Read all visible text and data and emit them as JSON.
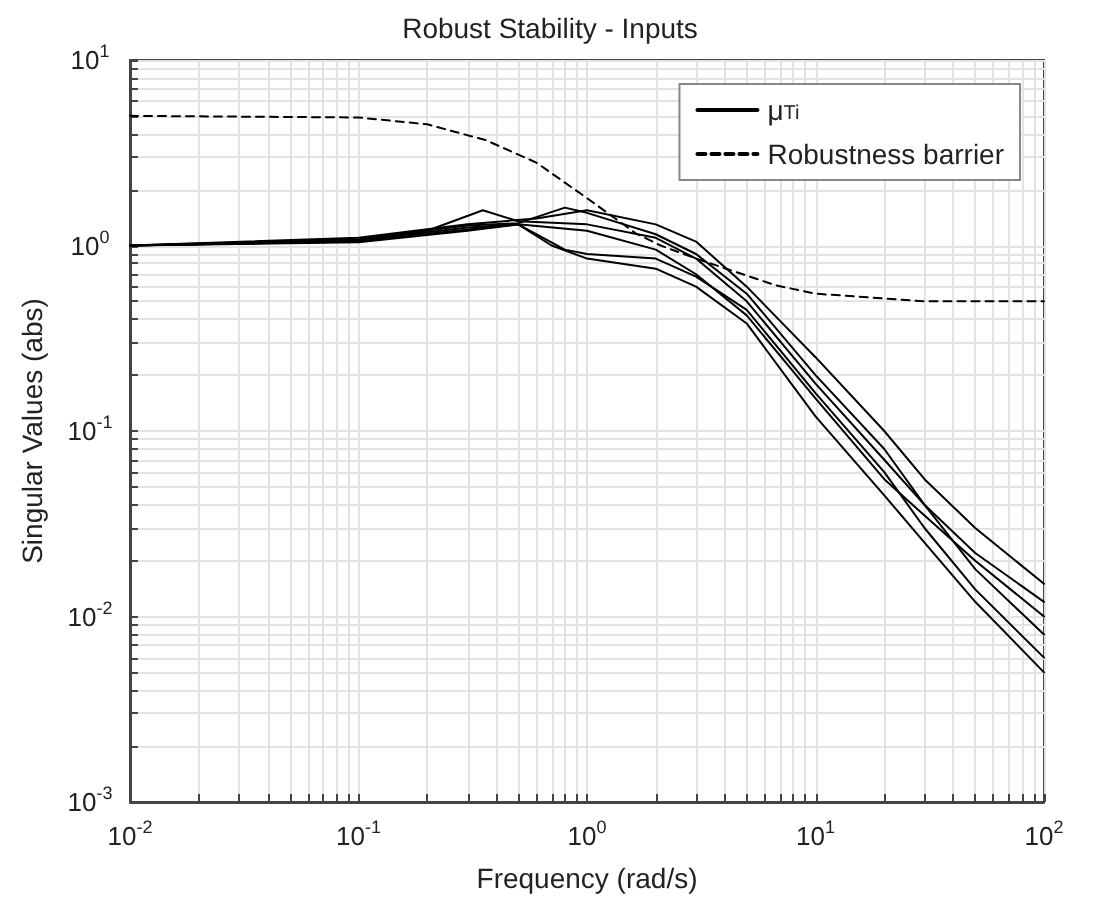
{
  "chart_data": {
    "type": "line",
    "title": "Robust Stability - Inputs",
    "xlabel": "Frequency (rad/s)",
    "ylabel": "Singular Values (abs)",
    "log": "xy",
    "grid": true,
    "legend": "top right",
    "marker": "none",
    "xlim": [
      0.01,
      100
    ],
    "ylim": [
      0.001,
      10
    ],
    "xticks": [
      {
        "value": 0.01,
        "label": "10$^{-2}$"
      },
      {
        "value": 0.02,
        "label": null
      },
      {
        "value": 0.03,
        "label": null
      },
      {
        "value": 0.04,
        "label": null
      },
      {
        "value": 0.05,
        "label": null
      },
      {
        "value": 0.06,
        "label": null
      },
      {
        "value": 0.07,
        "label": null
      },
      {
        "value": 0.08,
        "label": null
      },
      {
        "value": 0.09,
        "label": null
      },
      {
        "value": 0.1,
        "label": "10$^{-1}$"
      },
      {
        "value": 0.2,
        "label": null
      },
      {
        "value": 0.3,
        "label": null
      },
      {
        "value": 0.4,
        "label": null
      },
      {
        "value": 0.5,
        "label": null
      },
      {
        "value": 0.6,
        "label": null
      },
      {
        "value": 0.7,
        "label": null
      },
      {
        "value": 0.8,
        "label": null
      },
      {
        "value": 0.9,
        "label": null
      },
      {
        "value": 1,
        "label": "10$^{0}$"
      },
      {
        "value": 2,
        "label": null
      },
      {
        "value": 3,
        "label": null
      },
      {
        "value": 4,
        "label": null
      },
      {
        "value": 5,
        "label": null
      },
      {
        "value": 6,
        "label": null
      },
      {
        "value": 7,
        "label": null
      },
      {
        "value": 8,
        "label": null
      },
      {
        "value": 9,
        "label": null
      },
      {
        "value": 10,
        "label": "10$^{1}$"
      },
      {
        "value": 20,
        "label": null
      },
      {
        "value": 30,
        "label": null
      },
      {
        "value": 40,
        "label": null
      },
      {
        "value": 50,
        "label": null
      },
      {
        "value": 60,
        "label": null
      },
      {
        "value": 70,
        "label": null
      },
      {
        "value": 80,
        "label": null
      },
      {
        "value": 90,
        "label": null
      },
      {
        "value": 100,
        "label": "10$^{2}$"
      }
    ],
    "yticks": [
      {
        "value": 0.001,
        "label": "10$^{-3}$"
      },
      {
        "value": 0.002,
        "label": null
      },
      {
        "value": 0.003,
        "label": null
      },
      {
        "value": 0.004,
        "label": null
      },
      {
        "value": 0.005,
        "label": null
      },
      {
        "value": 0.006,
        "label": null
      },
      {
        "value": 0.007,
        "label": null
      },
      {
        "value": 0.008,
        "label": null
      },
      {
        "value": 0.009,
        "label": null
      },
      {
        "value": 0.01,
        "label": "10$^{-2}$"
      },
      {
        "value": 0.02,
        "label": null
      },
      {
        "value": 0.03,
        "label": null
      },
      {
        "value": 0.04,
        "label": null
      },
      {
        "value": 0.05,
        "label": null
      },
      {
        "value": 0.06,
        "label": null
      },
      {
        "value": 0.07,
        "label": null
      },
      {
        "value": 0.08,
        "label": null
      },
      {
        "value": 0.09,
        "label": null
      },
      {
        "value": 0.1,
        "label": "10$^{-1}$"
      },
      {
        "value": 0.2,
        "label": null
      },
      {
        "value": 0.3,
        "label": null
      },
      {
        "value": 0.4,
        "label": null
      },
      {
        "value": 0.5,
        "label": null
      },
      {
        "value": 0.6,
        "label": null
      },
      {
        "value": 0.7,
        "label": null
      },
      {
        "value": 0.8,
        "label": null
      },
      {
        "value": 0.9,
        "label": null
      },
      {
        "value": 1,
        "label": "10$^{0}$"
      },
      {
        "value": 2,
        "label": null
      },
      {
        "value": 3,
        "label": null
      },
      {
        "value": 4,
        "label": null
      },
      {
        "value": 5,
        "label": null
      },
      {
        "value": 6,
        "label": null
      },
      {
        "value": 7,
        "label": null
      },
      {
        "value": 8,
        "label": null
      },
      {
        "value": 9,
        "label": null
      },
      {
        "value": 10,
        "label": "10$^{1}$"
      }
    ],
    "series": [
      {
        "name": "μ$_{Ti}$",
        "color": "#000000",
        "line_style": "solid",
        "x": [
          0.01,
          0.1,
          0.3,
          0.6,
          1,
          2,
          3,
          5,
          10,
          20,
          30,
          50,
          100
        ],
        "values": [
          1,
          1.1,
          1.3,
          1.4,
          1.55,
          1.3,
          1.05,
          0.6,
          0.25,
          0.1,
          0.055,
          0.03,
          0.015
        ]
      },
      {
        "color": "#000000",
        "line_style": "solid",
        "x": [
          0.01,
          0.1,
          0.2,
          0.35,
          0.5,
          1,
          2,
          3,
          5,
          10,
          20,
          30,
          50,
          100
        ],
        "values": [
          1,
          1.05,
          1.2,
          1.55,
          1.35,
          1.3,
          1.1,
          0.85,
          0.5,
          0.18,
          0.07,
          0.04,
          0.022,
          0.012
        ]
      },
      {
        "color": "#000000",
        "line_style": "solid",
        "x": [
          0.01,
          0.1,
          0.3,
          0.5,
          0.7,
          1,
          2,
          3,
          5,
          10,
          20,
          30,
          50,
          100
        ],
        "values": [
          1,
          1.04,
          1.2,
          1.3,
          1.0,
          0.85,
          0.75,
          0.6,
          0.38,
          0.12,
          0.045,
          0.025,
          0.012,
          0.005
        ]
      },
      {
        "color": "#000000",
        "line_style": "solid",
        "x": [
          0.01,
          0.1,
          0.3,
          0.5,
          1,
          2,
          3,
          5,
          10,
          20,
          30,
          50,
          100
        ],
        "values": [
          1,
          1.06,
          1.25,
          1.3,
          1.2,
          0.95,
          0.7,
          0.42,
          0.15,
          0.055,
          0.035,
          0.02,
          0.01
        ]
      },
      {
        "color": "#000000",
        "line_style": "solid",
        "x": [
          0.01,
          0.1,
          0.3,
          0.5,
          0.8,
          1,
          2,
          3,
          5,
          10,
          20,
          30,
          50,
          100
        ],
        "values": [
          1,
          1.08,
          1.28,
          1.32,
          1.6,
          1.5,
          1.15,
          0.9,
          0.55,
          0.2,
          0.08,
          0.04,
          0.018,
          0.008
        ]
      },
      {
        "color": "#000000",
        "line_style": "solid",
        "x": [
          0.01,
          0.1,
          0.3,
          0.5,
          0.8,
          1,
          2,
          3,
          5,
          10,
          20,
          30,
          50,
          100
        ],
        "values": [
          1,
          1.05,
          1.22,
          1.3,
          0.95,
          0.9,
          0.85,
          0.68,
          0.45,
          0.16,
          0.06,
          0.03,
          0.014,
          0.006
        ]
      },
      {
        "name": "Robustness barrier",
        "color": "#000000",
        "line_style": "dashed",
        "x": [
          0.01,
          0.1,
          0.2,
          0.36,
          0.6,
          1,
          1.64,
          2.1,
          3,
          6.7,
          10,
          30,
          100
        ],
        "values": [
          5,
          4.9,
          4.5,
          3.7,
          2.8,
          1.8,
          1.16,
          1.0,
          0.85,
          0.61,
          0.55,
          0.5,
          0.5
        ]
      }
    ]
  }
}
